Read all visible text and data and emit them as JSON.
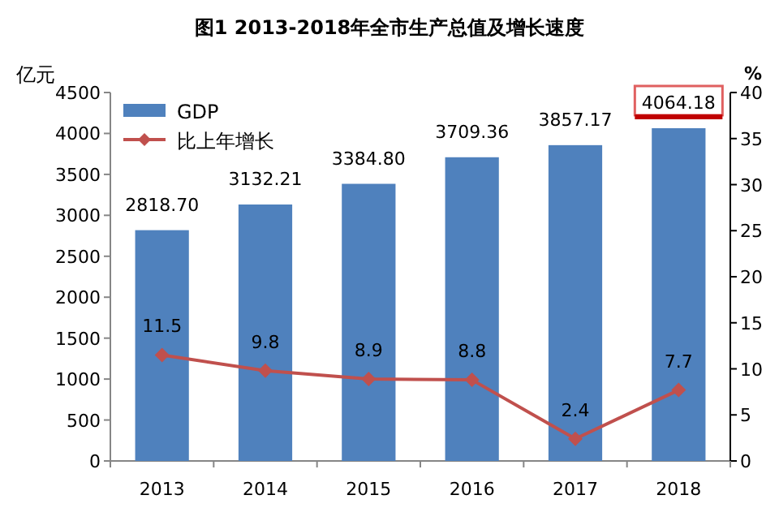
{
  "chart_data": {
    "type": "bar",
    "title": "图1  2013-2018年全市生产总值及增长速度",
    "ylabel": "亿元",
    "y2label": "%",
    "categories": [
      "2013",
      "2014",
      "2015",
      "2016",
      "2017",
      "2018"
    ],
    "series": [
      {
        "name": "GDP",
        "color": "#4f81bd",
        "values": [
          2818.7,
          3132.21,
          3384.8,
          3709.36,
          3857.17,
          4064.18
        ],
        "value_labels": [
          "2818.70",
          "3132.21",
          "3384.80",
          "3709.36",
          "3857.17",
          "4064.18"
        ]
      },
      {
        "name": "比上年增长",
        "type": "line",
        "axis": "y2",
        "color": "#c0504d",
        "values": [
          11.5,
          9.8,
          8.9,
          8.8,
          2.4,
          7.7
        ],
        "value_labels": [
          "11.5",
          "9.8",
          "8.9",
          "8.8",
          "2.4",
          "7.7"
        ]
      }
    ],
    "ylim": [
      0,
      4500
    ],
    "yticks": [
      0,
      500,
      1000,
      1500,
      2000,
      2500,
      3000,
      3500,
      4000,
      4500
    ],
    "y2lim": [
      0,
      40
    ],
    "y2ticks": [
      0,
      5,
      10,
      15,
      20,
      25,
      30,
      35,
      40
    ],
    "marker": "diamond",
    "grid": false,
    "legend": "top left"
  }
}
